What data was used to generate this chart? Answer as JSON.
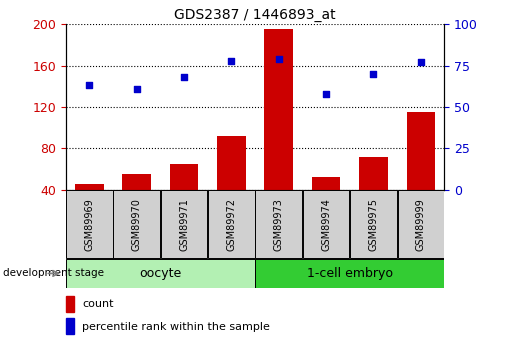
{
  "title": "GDS2387 / 1446893_at",
  "samples": [
    "GSM89969",
    "GSM89970",
    "GSM89971",
    "GSM89972",
    "GSM89973",
    "GSM89974",
    "GSM89975",
    "GSM89999"
  ],
  "counts": [
    46,
    55,
    65,
    92,
    195,
    52,
    72,
    115
  ],
  "percentiles": [
    63,
    61,
    68,
    78,
    79,
    58,
    70,
    77
  ],
  "bar_color": "#cc0000",
  "dot_color": "#0000cc",
  "ylim_left": [
    40,
    200
  ],
  "ylim_right": [
    0,
    100
  ],
  "yticks_left": [
    40,
    80,
    120,
    160,
    200
  ],
  "yticks_right": [
    0,
    25,
    50,
    75,
    100
  ],
  "groups": [
    {
      "label": "oocyte",
      "start": 0,
      "end": 4,
      "color": "#b2f0b2"
    },
    {
      "label": "1-cell embryo",
      "start": 4,
      "end": 8,
      "color": "#33cc33"
    }
  ],
  "legend_count_label": "count",
  "legend_pct_label": "percentile rank within the sample",
  "dev_stage_label": "development stage",
  "tick_label_color_left": "#cc0000",
  "tick_label_color_right": "#0000cc",
  "sample_box_color": "#d0d0d0",
  "oocyte_color": "#b3f0b3",
  "embryo_color": "#33cc33"
}
